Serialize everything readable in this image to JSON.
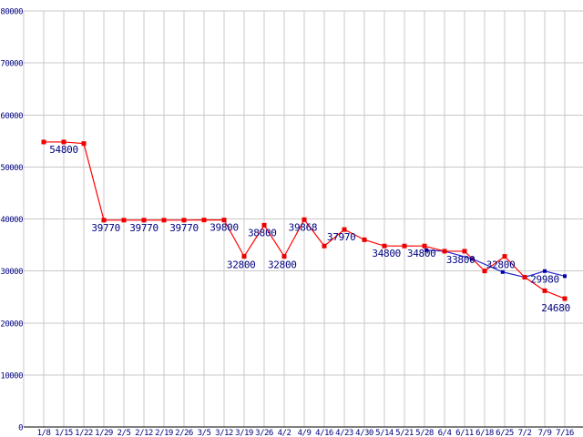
{
  "chart_data": {
    "type": "line",
    "title": "",
    "xlabel": "",
    "ylabel": "",
    "x_tick_labels": [
      "1/8",
      "1/15",
      "1/22",
      "1/29",
      "2/5",
      "2/12",
      "2/19",
      "2/26",
      "3/5",
      "3/12",
      "3/19",
      "3/26",
      "4/2",
      "4/9",
      "4/16",
      "4/23",
      "4/30",
      "5/14",
      "5/21",
      "5/28",
      "6/4",
      "6/11",
      "6/18",
      "6/25",
      "7/2",
      "7/9",
      "7/16"
    ],
    "y_ticks": [
      0,
      10000,
      20000,
      30000,
      40000,
      50000,
      60000,
      70000,
      80000
    ],
    "ylim": [
      0,
      80000
    ],
    "grid": true,
    "legend": "none",
    "series": [
      {
        "name": "lowest-price-red",
        "color": "#ff0000",
        "marker_color": "#ee0000",
        "marker_size": 5,
        "points": [
          [
            0,
            54800
          ],
          [
            1,
            54800
          ],
          [
            2,
            54500
          ],
          [
            3,
            39770
          ],
          [
            4,
            39770
          ],
          [
            5,
            39770
          ],
          [
            6,
            39770
          ],
          [
            7,
            39770
          ],
          [
            8,
            39800
          ],
          [
            9,
            39800
          ],
          [
            10,
            32800
          ],
          [
            11,
            38800
          ],
          [
            12,
            32800
          ],
          [
            13,
            39868
          ],
          [
            14,
            34800
          ],
          [
            15,
            37970
          ],
          [
            16,
            36000
          ],
          [
            17,
            34800
          ],
          [
            18,
            34800
          ],
          [
            19,
            34800
          ],
          [
            20,
            33800
          ],
          [
            21,
            33800
          ],
          [
            22,
            30000
          ],
          [
            23,
            32800
          ],
          [
            24,
            28800
          ],
          [
            25,
            26200
          ],
          [
            26,
            24680
          ]
        ]
      },
      {
        "name": "second-price-blue",
        "color": "#2a2acc",
        "marker_color": "#0000aa",
        "marker_size": 4,
        "points": [
          [
            19.1,
            34000
          ],
          [
            20,
            33800
          ],
          [
            21.4,
            32300
          ],
          [
            22.9,
            29800
          ],
          [
            24,
            28800
          ],
          [
            25,
            29980
          ],
          [
            26,
            29000
          ]
        ]
      }
    ],
    "annotations": [
      {
        "text": "54800",
        "xi": 1.0,
        "v": 54800,
        "dy": 12
      },
      {
        "text": "39770",
        "xi": 3.1,
        "v": 39770,
        "dy": 12
      },
      {
        "text": "39770",
        "xi": 5.0,
        "v": 39770,
        "dy": 12
      },
      {
        "text": "39770",
        "xi": 7.0,
        "v": 39770,
        "dy": 12
      },
      {
        "text": "39800",
        "xi": 9.0,
        "v": 39800,
        "dy": 12
      },
      {
        "text": "32800",
        "xi": 9.85,
        "v": 32800,
        "dy": 13
      },
      {
        "text": "38800",
        "xi": 10.9,
        "v": 38800,
        "dy": 12
      },
      {
        "text": "32800",
        "xi": 11.9,
        "v": 32800,
        "dy": 13
      },
      {
        "text": "39868",
        "xi": 12.93,
        "v": 39868,
        "dy": 12
      },
      {
        "text": "37970",
        "xi": 14.85,
        "v": 37970,
        "dy": 12
      },
      {
        "text": "34800",
        "xi": 17.1,
        "v": 34800,
        "dy": 12
      },
      {
        "text": "34800",
        "xi": 18.85,
        "v": 34800,
        "dy": 12
      },
      {
        "text": "33800",
        "xi": 20.8,
        "v": 33800,
        "dy": 13
      },
      {
        "text": "32800",
        "xi": 22.8,
        "v": 32800,
        "dy": 13
      },
      {
        "text": "29980",
        "xi": 25.0,
        "v": 29980,
        "dy": 13
      },
      {
        "text": "24680",
        "xi": 25.55,
        "v": 24680,
        "dy": 14
      }
    ]
  },
  "colors": {
    "background": "#ffffff",
    "gridline": "#c8c8c8",
    "axis_line": "#000000",
    "tick_text": "#000080",
    "value_label_text": "#000080",
    "series_red": "#ff0000",
    "series_blue": "#2a2acc"
  }
}
